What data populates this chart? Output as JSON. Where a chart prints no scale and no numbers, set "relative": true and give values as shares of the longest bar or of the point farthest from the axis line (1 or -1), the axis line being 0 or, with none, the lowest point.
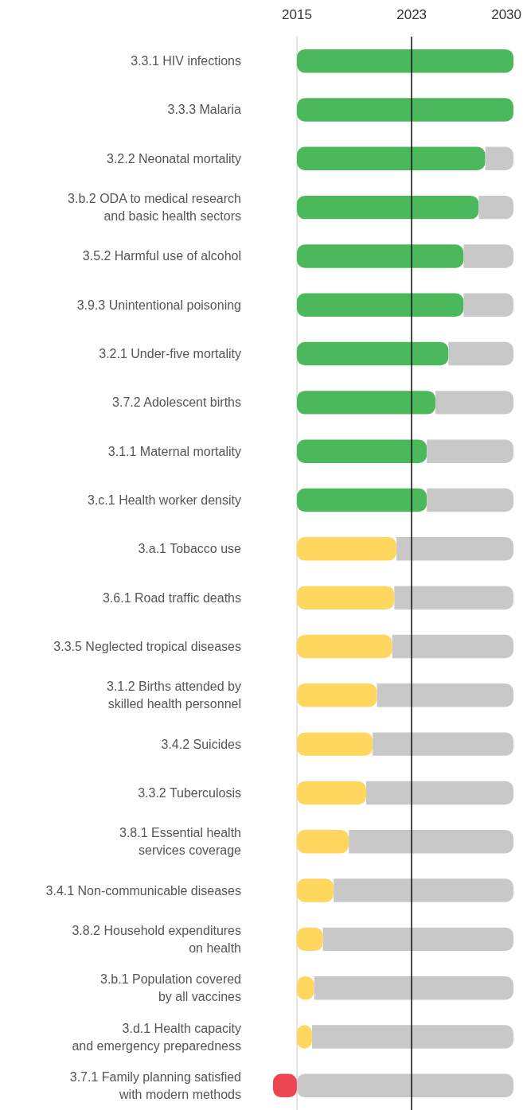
{
  "chart_data": {
    "type": "bar",
    "orientation": "horizontal",
    "stacked": true,
    "relative": true,
    "categories": [
      "3.3.1 HIV infections",
      "3.3.3 Malaria",
      "3.2.2 Neonatal mortality",
      "3.b.2 ODA to medical research\nand basic health sectors",
      "3.5.2 Harmful use of alcohol",
      "3.9.3 Unintentional poisoning",
      "3.2.1 Under-five mortality",
      "3.7.2 Adolescent births",
      "3.1.1 Maternal mortality",
      "3.c.1 Health worker density",
      "3.a.1 Tobacco use",
      "3.6.1 Road traffic deaths",
      "3.3.5 Neglected tropical diseases",
      "3.1.2 Births attended by\nskilled health personnel",
      "3.4.2 Suicides",
      "3.3.2 Tuberculosis",
      "3.8.1 Essential health\nservices coverage",
      "3.4.1 Non-communicable diseases",
      "3.8.2 Household expenditures\non health",
      "3.b.1 Population covered\nby all vaccines",
      "3.d.1 Health capacity\nand emergency preparedness",
      "3.7.1 Family planning satisfied\nwith modern methods"
    ],
    "series": [
      {
        "colors": [
          "#4cb85c",
          "#4cb85c",
          "#4cb85c",
          "#4cb85c",
          "#4cb85c",
          "#4cb85c",
          "#4cb85c",
          "#4cb85c",
          "#4cb85c",
          "#4cb85c",
          "#ffd75e",
          "#ffd75e",
          "#ffd75e",
          "#ffd75e",
          "#ffd75e",
          "#ffd75e",
          "#ffd75e",
          "#ffd75e",
          "#ffd75e",
          "#ffd75e",
          "#ffd75e",
          "#ee4650"
        ],
        "values": [
          1,
          1,
          0.87,
          0.84,
          0.77,
          0.77,
          0.7,
          0.64,
          0.6,
          0.6,
          0.46,
          0.45,
          0.44,
          0.37,
          0.35,
          0.32,
          0.24,
          0.17,
          0.12,
          0.08,
          0.07,
          -0.11
        ]
      },
      {
        "color": "#c8c8c8",
        "values": [
          0,
          0,
          0.13,
          0.16,
          0.23,
          0.23,
          0.3,
          0.36,
          0.4,
          0.4,
          0.54,
          0.55,
          0.56,
          0.63,
          0.65,
          0.68,
          0.76,
          0.83,
          0.88,
          0.92,
          0.93,
          1
        ]
      }
    ],
    "annotations": [
      "2015",
      "2023",
      "2030"
    ],
    "ref_lines": [
      {
        "axis": "x",
        "value": 0.53,
        "color": "#111111"
      }
    ]
  }
}
